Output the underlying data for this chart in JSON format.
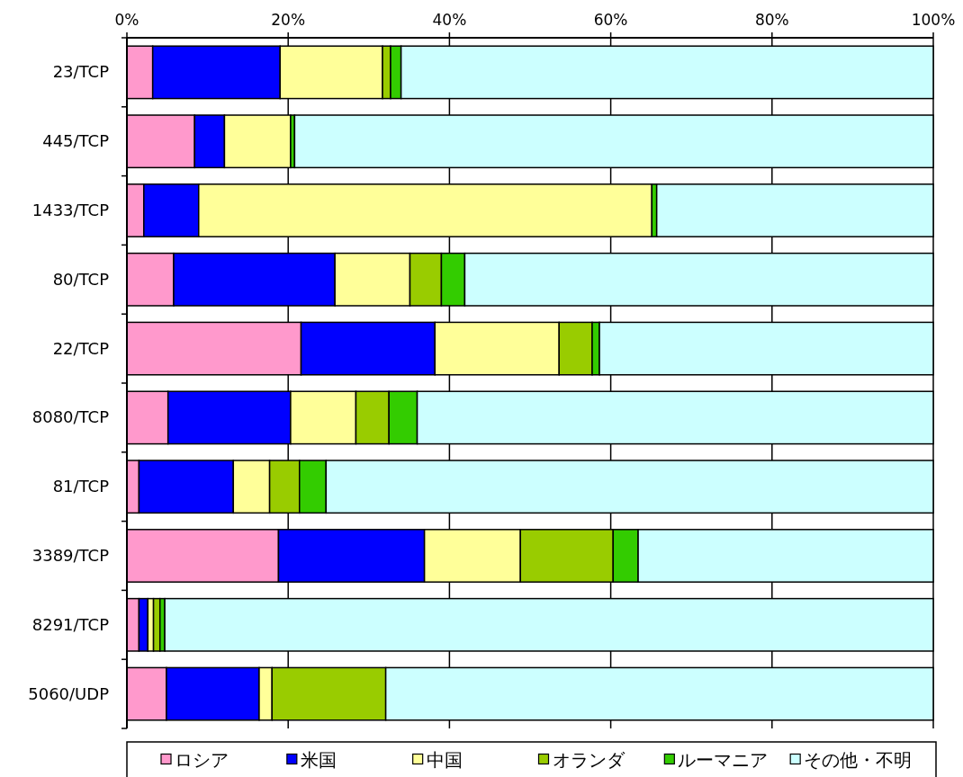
{
  "chart_data": {
    "type": "bar",
    "orientation": "horizontal",
    "stacked": true,
    "grid": "x",
    "legend": "bottom",
    "categories": [
      "23/TCP",
      "445/TCP",
      "1433/TCP",
      "80/TCP",
      "22/TCP",
      "8080/TCP",
      "81/TCP",
      "3389/TCP",
      "8291/TCP",
      "5060/UDP"
    ],
    "xlim": [
      0,
      100
    ],
    "xticks": [
      {
        "value": 0,
        "label": "0%"
      },
      {
        "value": 20,
        "label": "20%"
      },
      {
        "value": 40,
        "label": "40%"
      },
      {
        "value": 60,
        "label": "60%"
      },
      {
        "value": 80,
        "label": "80%"
      },
      {
        "value": 100,
        "label": "100%"
      }
    ],
    "series": [
      {
        "name": "ロシア",
        "color": "#ff99cc",
        "values": [
          3.2,
          8.4,
          2.1,
          5.8,
          21.6,
          5.1,
          1.5,
          18.8,
          1.5,
          4.9
        ]
      },
      {
        "name": "米国",
        "color": "#0000ff",
        "values": [
          15.8,
          3.7,
          6.8,
          20.0,
          16.6,
          15.2,
          11.7,
          18.1,
          1.1,
          11.5
        ]
      },
      {
        "name": "中国",
        "color": "#ffff99",
        "values": [
          12.7,
          8.2,
          56.2,
          9.3,
          15.4,
          8.1,
          4.5,
          11.9,
          0.7,
          1.6
        ]
      },
      {
        "name": "オランダ",
        "color": "#99cc00",
        "values": [
          1.0,
          null,
          null,
          3.9,
          4.1,
          4.1,
          3.7,
          11.5,
          0.8,
          14.1
        ]
      },
      {
        "name": "ルーマニア",
        "color": "#33cc00",
        "values": [
          1.3,
          0.5,
          0.6,
          2.9,
          0.9,
          3.5,
          3.3,
          3.1,
          0.6,
          0
        ]
      },
      {
        "name": "その他・不明",
        "color": "#ccffff",
        "values": [
          66.0,
          79.2,
          34.3,
          58.1,
          41.4,
          64.0,
          75.3,
          36.6,
          95.3,
          67.9
        ]
      }
    ]
  }
}
